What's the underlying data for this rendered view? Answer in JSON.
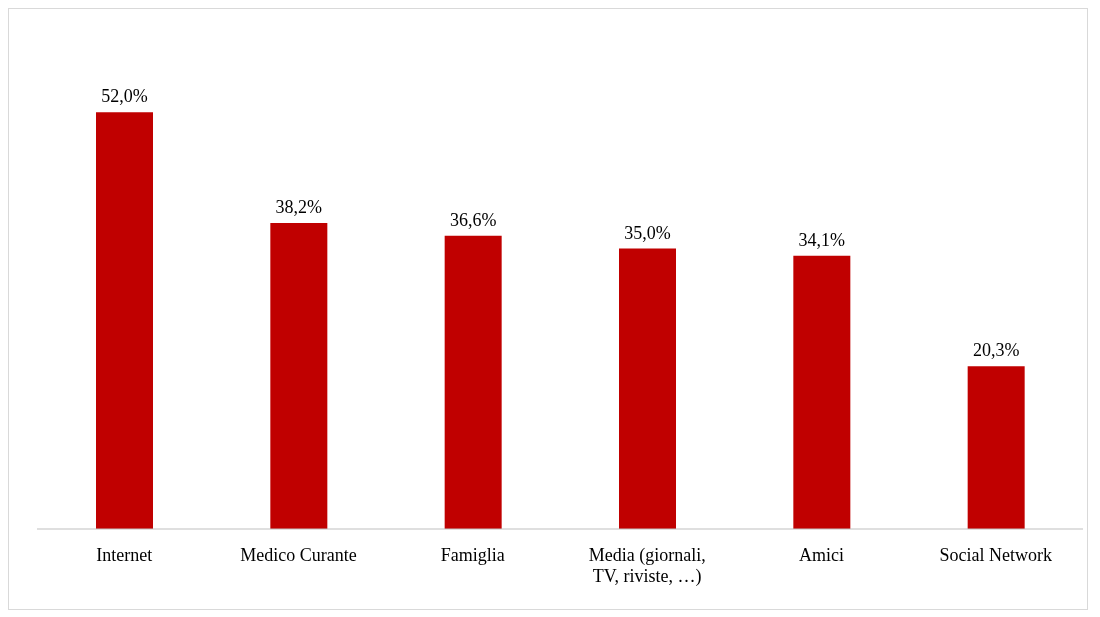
{
  "chart_data": {
    "type": "bar",
    "categories": [
      "Internet",
      "Medico Curante",
      "Famiglia",
      "Media (giornali, TV, riviste, …)",
      "Amici",
      "Social Network"
    ],
    "values": [
      52.0,
      38.2,
      36.6,
      35.0,
      34.1,
      20.3
    ],
    "value_labels": [
      "52,0%",
      "38,2%",
      "36,6%",
      "35,0%",
      "34,1%",
      "20,3%"
    ],
    "color": "#c00000",
    "grid": false,
    "legend": false
  }
}
